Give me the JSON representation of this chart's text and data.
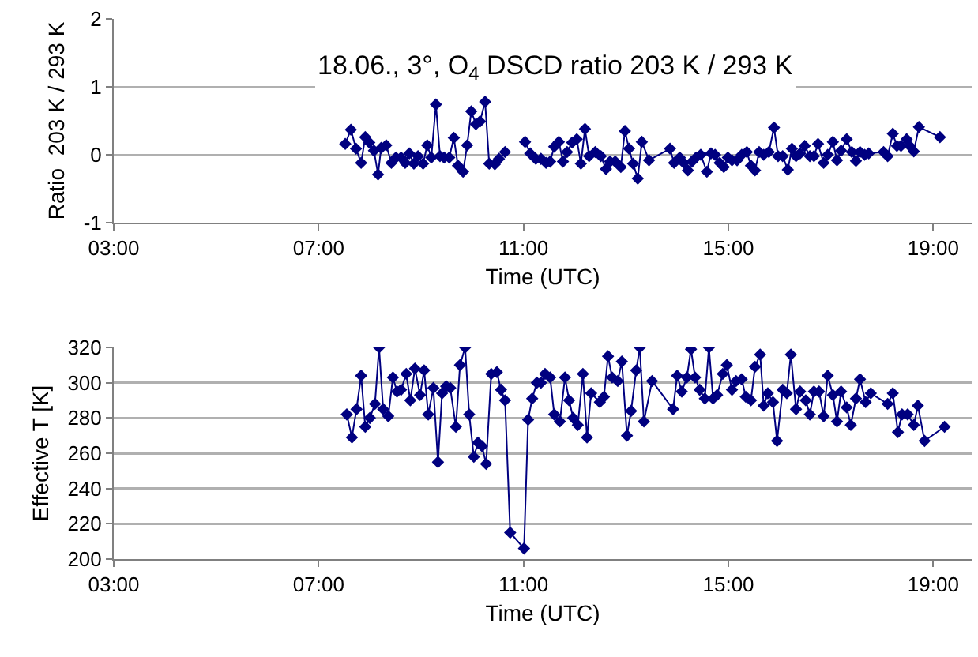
{
  "chart_data": [
    {
      "type": "line",
      "title": "18.06., 3°, O$_{4}$ DSCD ratio 203 K / 293 K",
      "xlabel": "Time (UTC)",
      "ylabel": "Ratio  203 K / 293 K",
      "marker": "diamond",
      "grid": "y",
      "color": "#000080",
      "xlim": [
        3,
        19.75
      ],
      "xticks": [
        {
          "value": 3,
          "label": "03:00"
        },
        {
          "value": 7,
          "label": "07:00"
        },
        {
          "value": 11,
          "label": "11:00"
        },
        {
          "value": 15,
          "label": "15:00"
        },
        {
          "value": 19,
          "label": "19:00"
        }
      ],
      "ylim": [
        -1,
        2
      ],
      "yticks": [
        -1,
        0,
        1,
        2
      ],
      "x": [
        7.52,
        7.63,
        7.73,
        7.83,
        7.91,
        7.99,
        8.08,
        8.16,
        8.22,
        8.32,
        8.42,
        8.51,
        8.61,
        8.69,
        8.77,
        8.86,
        8.94,
        9.04,
        9.12,
        9.2,
        9.29,
        9.37,
        9.45,
        9.55,
        9.64,
        9.72,
        9.82,
        9.9,
        9.98,
        10.07,
        10.15,
        10.25,
        10.33,
        10.44,
        10.52,
        10.64,
        10.8,
        11.03,
        11.13,
        11.24,
        11.34,
        11.44,
        11.52,
        11.6,
        11.69,
        11.77,
        11.85,
        11.95,
        12.04,
        12.12,
        12.2,
        12.28,
        12.4,
        12.51,
        12.61,
        12.69,
        12.79,
        12.9,
        12.98,
        13.06,
        13.14,
        13.23,
        13.31,
        13.45,
        13.86,
        13.94,
        14.05,
        14.13,
        14.21,
        14.29,
        14.37,
        14.46,
        14.58,
        14.66,
        14.74,
        14.83,
        14.91,
        14.99,
        15.07,
        15.17,
        15.26,
        15.36,
        15.44,
        15.52,
        15.6,
        15.69,
        15.79,
        15.89,
        15.97,
        16.06,
        16.16,
        16.24,
        16.32,
        16.4,
        16.49,
        16.59,
        16.67,
        16.75,
        16.86,
        16.94,
        17.04,
        17.12,
        17.2,
        17.31,
        17.41,
        17.49,
        17.57,
        17.66,
        17.74,
        18.03,
        18.11,
        18.21,
        18.29,
        18.37,
        18.48,
        18.54,
        18.62,
        18.72,
        19.13
      ],
      "values": [
        0.16,
        0.37,
        0.09,
        -0.12,
        0.26,
        0.18,
        0.06,
        -0.29,
        0.1,
        0.14,
        -0.12,
        -0.04,
        -0.04,
        -0.12,
        0.02,
        -0.13,
        -0.02,
        -0.13,
        0.14,
        -0.04,
        0.74,
        -0.02,
        -0.04,
        -0.04,
        0.25,
        -0.16,
        -0.25,
        0.14,
        0.64,
        0.45,
        0.49,
        0.78,
        -0.13,
        -0.14,
        -0.06,
        0.04,
        null,
        0.19,
        0.02,
        -0.06,
        -0.06,
        -0.12,
        -0.1,
        0.12,
        0.19,
        -0.1,
        0.04,
        0.18,
        0.23,
        -0.13,
        0.38,
        -0.02,
        0.04,
        -0.02,
        -0.21,
        -0.1,
        -0.1,
        -0.18,
        0.35,
        0.09,
        -0.13,
        -0.35,
        0.19,
        -0.08,
        0.09,
        -0.12,
        -0.04,
        -0.12,
        -0.23,
        -0.1,
        -0.04,
        0,
        -0.25,
        0.02,
        0,
        -0.12,
        -0.18,
        -0.04,
        -0.08,
        -0.08,
        0,
        0.04,
        -0.16,
        -0.23,
        0.04,
        0,
        0.04,
        0.4,
        -0.02,
        -0.02,
        -0.22,
        0.09,
        -0.02,
        0.02,
        0.13,
        -0.02,
        -0.02,
        0.16,
        -0.12,
        0,
        0.19,
        -0.08,
        0.06,
        0.23,
        0.04,
        -0.09,
        0.04,
        0,
        0.02,
        0.04,
        -0.02,
        0.31,
        0.13,
        0.13,
        0.23,
        0.13,
        0.05,
        0.41,
        0.26
      ]
    },
    {
      "type": "line",
      "xlabel": "Time (UTC)",
      "ylabel": "Effective T [K]",
      "marker": "diamond",
      "grid": "y",
      "color": "#000080",
      "xlim": [
        3,
        19.75
      ],
      "xticks": [
        {
          "value": 3,
          "label": "03:00"
        },
        {
          "value": 7,
          "label": "07:00"
        },
        {
          "value": 11,
          "label": "11:00"
        },
        {
          "value": 15,
          "label": "15:00"
        },
        {
          "value": 19,
          "label": "19:00"
        }
      ],
      "ylim": [
        200,
        320
      ],
      "yticks": [
        200,
        220,
        240,
        260,
        280,
        300,
        320
      ],
      "x": [
        7.55,
        7.65,
        7.74,
        7.83,
        7.91,
        8.0,
        8.1,
        8.18,
        8.26,
        8.36,
        8.45,
        8.53,
        8.61,
        8.71,
        8.79,
        8.88,
        8.98,
        9.06,
        9.14,
        9.24,
        9.33,
        9.41,
        9.49,
        9.57,
        9.68,
        9.76,
        9.86,
        9.94,
        10.03,
        10.11,
        10.19,
        10.27,
        10.37,
        10.48,
        10.56,
        10.64,
        10.74,
        11.01,
        11.09,
        11.17,
        11.26,
        11.34,
        11.42,
        11.52,
        11.6,
        11.71,
        11.81,
        11.89,
        11.97,
        12.06,
        12.16,
        12.24,
        12.32,
        12.49,
        12.57,
        12.65,
        12.73,
        12.84,
        12.92,
        13.02,
        13.1,
        13.2,
        13.27,
        13.35,
        13.51,
        13.92,
        14.0,
        14.09,
        14.19,
        14.27,
        14.35,
        14.44,
        14.54,
        14.62,
        14.7,
        14.78,
        14.89,
        14.97,
        15.07,
        15.15,
        15.26,
        15.34,
        15.44,
        15.52,
        15.62,
        15.69,
        15.77,
        15.87,
        15.95,
        16.06,
        16.14,
        16.22,
        16.32,
        16.4,
        16.51,
        16.59,
        16.67,
        16.77,
        16.86,
        16.94,
        17.04,
        17.12,
        17.2,
        17.31,
        17.39,
        17.49,
        17.57,
        17.68,
        17.78,
        18.11,
        18.21,
        18.31,
        18.39,
        18.5,
        18.62,
        18.7,
        18.83,
        19.22
      ],
      "values": [
        282,
        269,
        285,
        304,
        275,
        280,
        288,
        320,
        285,
        281,
        303,
        295,
        296,
        305,
        290,
        308,
        293,
        307,
        282,
        297,
        255,
        294,
        298,
        297,
        275,
        310,
        320,
        282,
        258,
        266,
        264,
        254,
        305,
        306,
        296,
        290,
        215,
        206,
        279,
        291,
        300,
        300,
        305,
        303,
        282,
        278,
        303,
        290,
        280,
        276,
        305,
        269,
        294,
        289,
        292,
        315,
        303,
        301,
        312,
        270,
        284,
        307,
        320,
        278,
        301,
        285,
        304,
        295,
        303,
        319,
        303,
        296,
        291,
        320,
        291,
        293,
        305,
        310,
        296,
        301,
        302,
        292,
        290,
        309,
        316,
        287,
        294,
        289,
        267,
        296,
        294,
        316,
        285,
        295,
        290,
        282,
        295,
        295,
        281,
        304,
        293,
        278,
        295,
        286,
        276,
        291,
        302,
        289,
        294,
        288,
        294,
        272,
        282,
        282,
        276,
        287,
        267,
        275
      ]
    }
  ]
}
